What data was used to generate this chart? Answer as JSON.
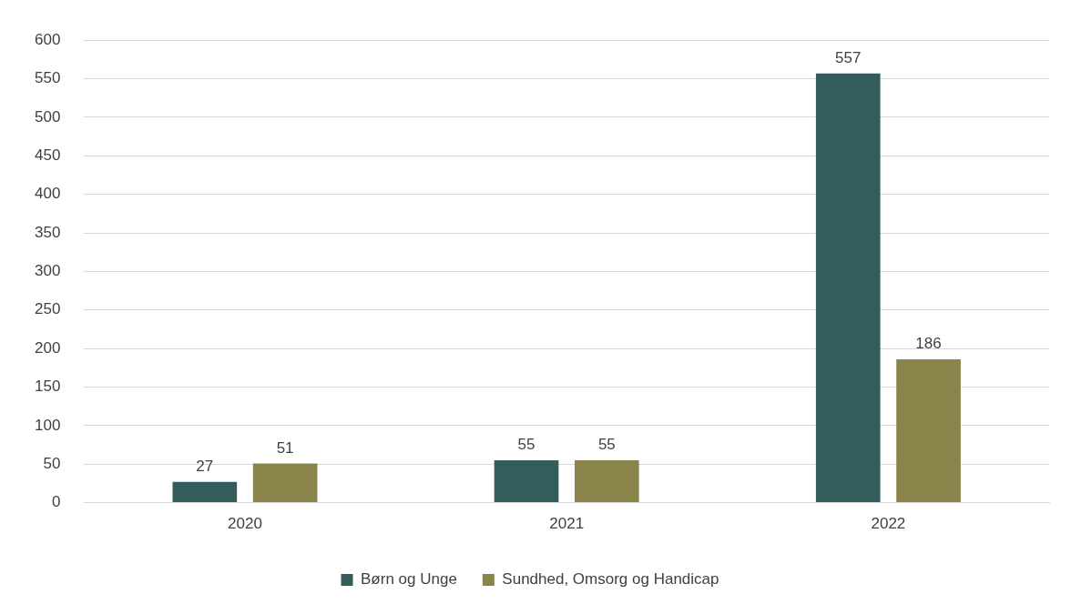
{
  "chart_data": {
    "type": "bar",
    "categories": [
      "2020",
      "2021",
      "2022"
    ],
    "series": [
      {
        "name": "Børn og Unge",
        "color": "#335c5c",
        "values": [
          27,
          55,
          557
        ]
      },
      {
        "name": "Sundhed, Omsorg og Handicap",
        "color": "#8a844a",
        "values": [
          51,
          55,
          186
        ]
      }
    ],
    "ylim": [
      0,
      600
    ],
    "yticks": [
      0,
      50,
      100,
      150,
      200,
      250,
      300,
      350,
      400,
      450,
      500,
      550,
      600
    ],
    "grid": "y",
    "legend": "bottom",
    "data_labels": true
  }
}
